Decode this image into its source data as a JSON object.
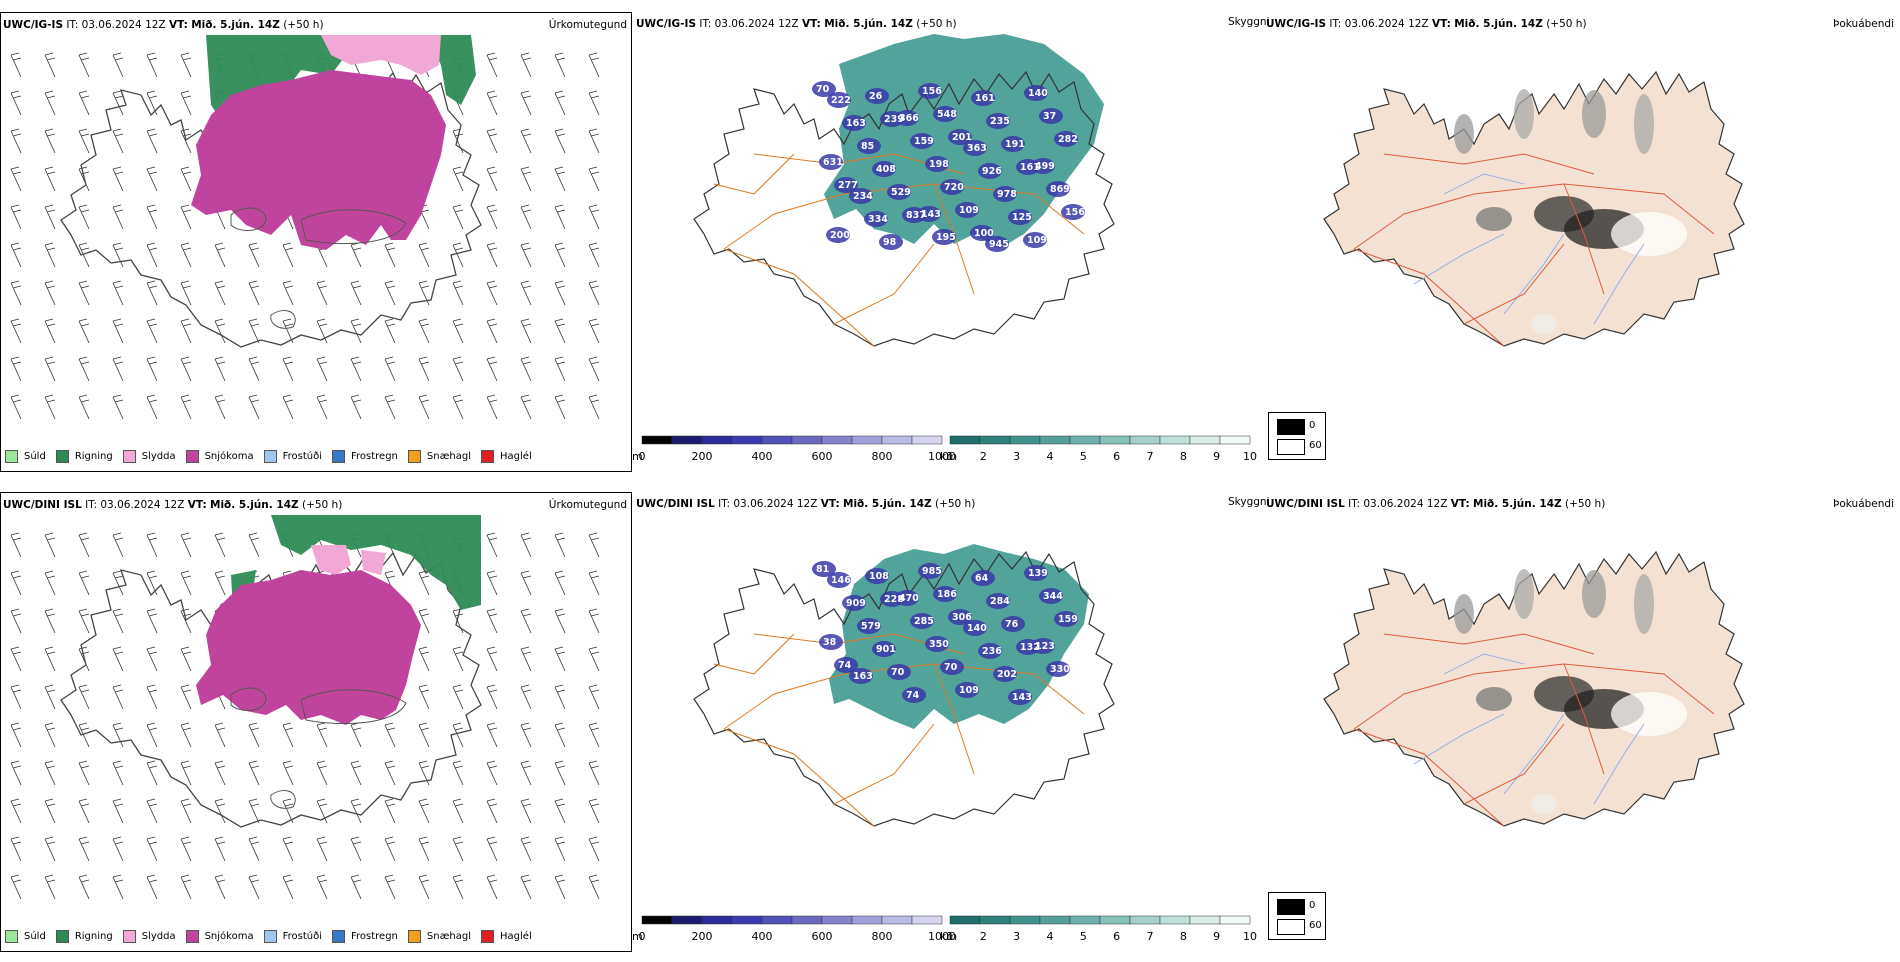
{
  "rows": [
    {
      "model": "UWC/IG-IS",
      "it_label": "IT:",
      "it_value": "03.06.2024 12Z",
      "vt_label": "VT:",
      "vt_value": "Mið. 5.jún. 14Z",
      "offset": "(+50 h)",
      "panel1_title": "Úrkomutegund",
      "panel2_title": "Skyggni",
      "panel3_title": "Þokuábendi",
      "labels": [
        "70",
        "26",
        "156",
        "161",
        "140",
        "222",
        "239",
        "548",
        "235",
        "37",
        "163",
        "366",
        "201",
        "191",
        "282",
        "85",
        "159",
        "363",
        "161",
        "631",
        "408",
        "198",
        "926",
        "499",
        "277",
        "529",
        "720",
        "978",
        "869",
        "234",
        "837",
        "109",
        "125",
        "156",
        "334",
        "143",
        "100",
        "109",
        "200",
        "98",
        "195",
        "945"
      ]
    },
    {
      "model": "UWC/DINI ISL",
      "it_label": "IT:",
      "it_value": "03.06.2024 12Z",
      "vt_label": "VT:",
      "vt_value": "Mið. 5.jún. 14Z",
      "offset": "(+50 h)",
      "panel1_title": "Úrkomutegund",
      "panel2_title": "Skyggni",
      "panel3_title": "Þokuábendi",
      "labels": [
        "81",
        "108",
        "985",
        "64",
        "139",
        "146",
        "228",
        "186",
        "284",
        "344",
        "909",
        "470",
        "306",
        "76",
        "159",
        "579",
        "285",
        "140",
        "132",
        "38",
        "901",
        "350",
        "236",
        "123",
        "74",
        "70",
        "70",
        "202",
        "330",
        "163",
        "74",
        "109",
        "143"
      ]
    }
  ],
  "precip_legend": [
    {
      "label": "Súld",
      "color": "#9be89b"
    },
    {
      "label": "Rigning",
      "color": "#2e8b57"
    },
    {
      "label": "Slydda",
      "color": "#f2a8d4"
    },
    {
      "label": "Snjókoma",
      "color": "#c0449e"
    },
    {
      "label": "Frostúði",
      "color": "#9ec8f0"
    },
    {
      "label": "Frostregn",
      "color": "#3a78c6"
    },
    {
      "label": "Snæhagl",
      "color": "#f0a020"
    },
    {
      "label": "Haglél",
      "color": "#e02020"
    }
  ],
  "scale_m": {
    "unit": "m",
    "ticks": [
      "0",
      "200",
      "400",
      "600",
      "800",
      "1000"
    ],
    "colors": [
      "#000000",
      "#1b1b6e",
      "#2a2a9a",
      "#3b3bb0",
      "#5050b8",
      "#6a6ac0",
      "#8585cc",
      "#a0a0d8",
      "#babae4",
      "#d6d6f0"
    ]
  },
  "scale_km": {
    "unit": "km",
    "ticks": [
      "1",
      "2",
      "3",
      "4",
      "5",
      "6",
      "7",
      "8",
      "9",
      "10"
    ],
    "colors": [
      "#1e6f6a",
      "#2f7f7a",
      "#3f8f8a",
      "#56a09a",
      "#6fb0aa",
      "#8ac0ba",
      "#a5d0ca",
      "#c0e0da",
      "#dceeea",
      "#f4faf8"
    ]
  },
  "fog_legend": [
    {
      "label": "0",
      "color": "#000000"
    },
    {
      "label": "60",
      "color": "#ffffff"
    }
  ]
}
